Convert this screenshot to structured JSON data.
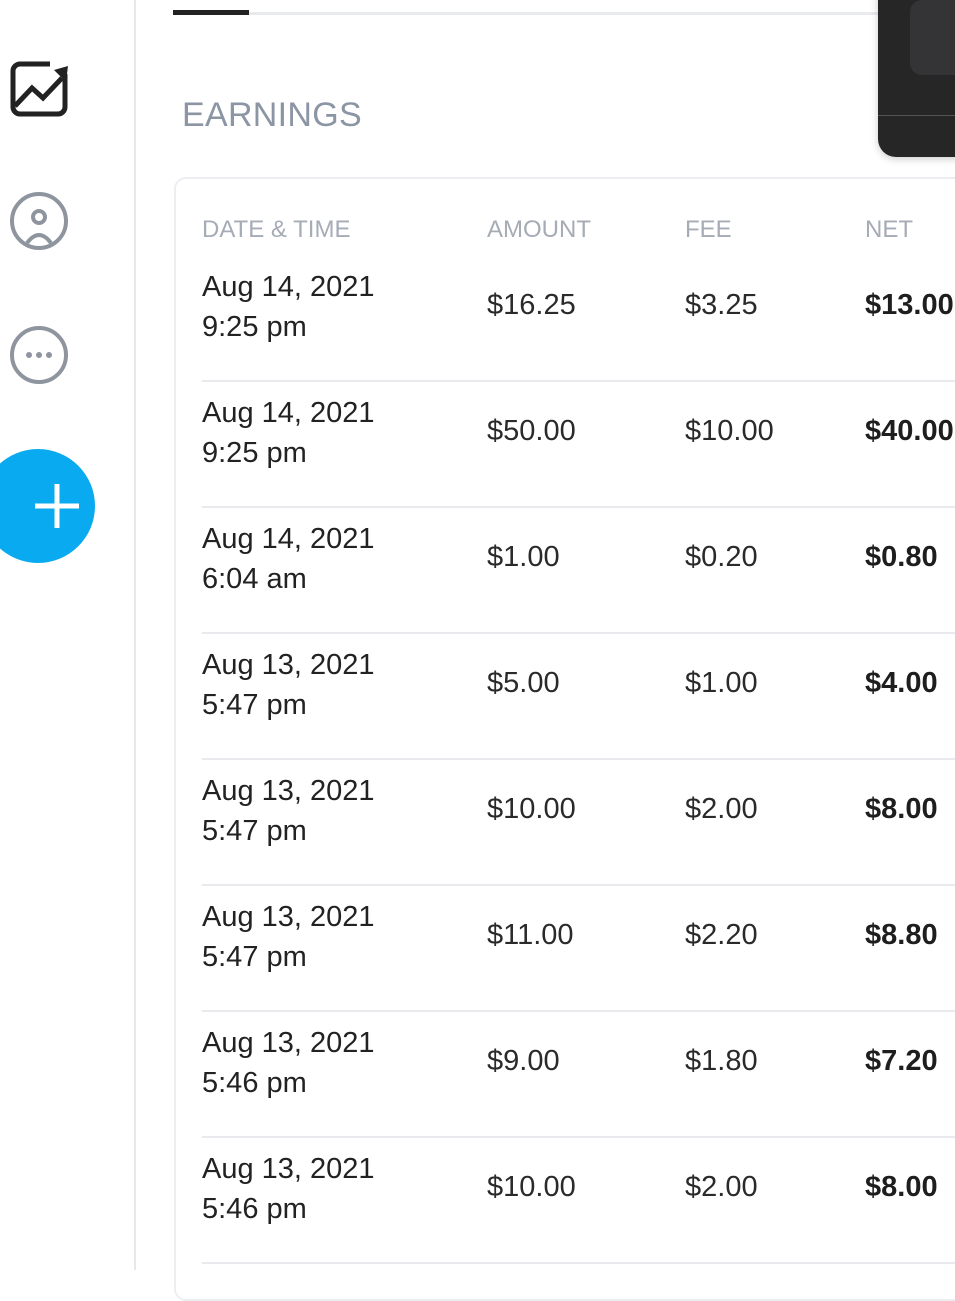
{
  "sidebar": {
    "icons": [
      "chart-icon",
      "user-circle-icon",
      "more-icon"
    ],
    "fab_icon": "plus-icon",
    "fab_color": "#0aaaf0"
  },
  "section": {
    "title": "EARNINGS"
  },
  "table": {
    "headers": [
      "DATE & TIME",
      "AMOUNT",
      "FEE",
      "NET"
    ],
    "rows": [
      {
        "date": "Aug 14, 2021",
        "time": "9:25 pm",
        "amount": "$16.25",
        "fee": "$3.25",
        "net": "$13.00"
      },
      {
        "date": "Aug 14, 2021",
        "time": "9:25 pm",
        "amount": "$50.00",
        "fee": "$10.00",
        "net": "$40.00"
      },
      {
        "date": "Aug 14, 2021",
        "time": "6:04 am",
        "amount": "$1.00",
        "fee": "$0.20",
        "net": "$0.80"
      },
      {
        "date": "Aug 13, 2021",
        "time": "5:47 pm",
        "amount": "$5.00",
        "fee": "$1.00",
        "net": "$4.00"
      },
      {
        "date": "Aug 13, 2021",
        "time": "5:47 pm",
        "amount": "$10.00",
        "fee": "$2.00",
        "net": "$8.00"
      },
      {
        "date": "Aug 13, 2021",
        "time": "5:47 pm",
        "amount": "$11.00",
        "fee": "$2.20",
        "net": "$8.80"
      },
      {
        "date": "Aug 13, 2021",
        "time": "5:46 pm",
        "amount": "$9.00",
        "fee": "$1.80",
        "net": "$7.20"
      },
      {
        "date": "Aug 13, 2021",
        "time": "5:46 pm",
        "amount": "$10.00",
        "fee": "$2.00",
        "net": "$8.00"
      }
    ]
  }
}
